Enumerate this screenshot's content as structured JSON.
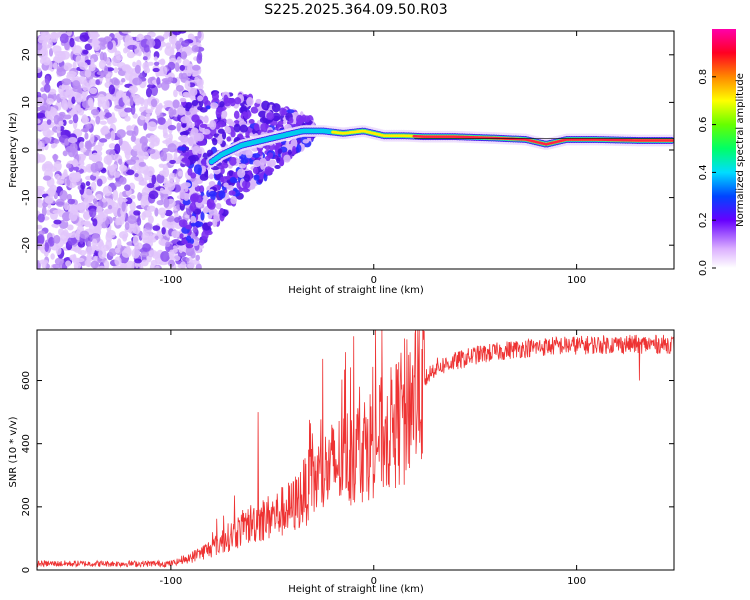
{
  "title": "S225.2025.364.09.50.R03",
  "colors": {
    "snr_line": "#ee3333",
    "background": "#ffffff",
    "axis": "#000000",
    "ridge": "#ff2244",
    "scatter": "#7722ee"
  },
  "chart_data": [
    {
      "type": "heatmap",
      "name": "spectrogram",
      "xlabel": "Height of straight line (km)",
      "ylabel": "Frequency (Hz)",
      "xlim": [
        -166,
        148
      ],
      "ylim": [
        -25,
        25
      ],
      "xticks": [
        -100,
        0,
        100
      ],
      "yticks": [
        -20,
        -10,
        0,
        10,
        20
      ],
      "colorbar": {
        "label": "Normalized spectral amplitude",
        "range": [
          0,
          1
        ],
        "ticks": [
          "0.0",
          "0.2",
          "0.4",
          "0.6",
          "0.8"
        ],
        "tick_values": [
          0.0,
          0.2,
          0.4,
          0.6,
          0.8
        ]
      },
      "ridge": [
        {
          "x": -85,
          "y": -4
        },
        {
          "x": -75,
          "y": -1
        },
        {
          "x": -65,
          "y": 1
        },
        {
          "x": -55,
          "y": 2
        },
        {
          "x": -45,
          "y": 3
        },
        {
          "x": -35,
          "y": 4
        },
        {
          "x": -25,
          "y": 4
        },
        {
          "x": -15,
          "y": 3.5
        },
        {
          "x": -5,
          "y": 4
        },
        {
          "x": 5,
          "y": 3
        },
        {
          "x": 15,
          "y": 3
        },
        {
          "x": 25,
          "y": 2.8
        },
        {
          "x": 40,
          "y": 2.8
        },
        {
          "x": 60,
          "y": 2.5
        },
        {
          "x": 75,
          "y": 2.2
        },
        {
          "x": 85,
          "y": 1.2
        },
        {
          "x": 95,
          "y": 2.2
        },
        {
          "x": 110,
          "y": 2.2
        },
        {
          "x": 130,
          "y": 2.0
        },
        {
          "x": 148,
          "y": 2.0
        }
      ]
    },
    {
      "type": "line",
      "name": "snr",
      "xlabel": "Height of straight line (km)",
      "ylabel": "SNR (10 * v/v)",
      "xlim": [
        -166,
        148
      ],
      "ylim": [
        0,
        760
      ],
      "xticks": [
        -100,
        0,
        100
      ],
      "yticks": [
        0,
        200,
        400,
        600
      ],
      "envelope": [
        {
          "x": -166,
          "y": 20
        },
        {
          "x": -100,
          "y": 20
        },
        {
          "x": -90,
          "y": 40
        },
        {
          "x": -80,
          "y": 70
        },
        {
          "x": -70,
          "y": 110
        },
        {
          "x": -60,
          "y": 150
        },
        {
          "x": -50,
          "y": 170
        },
        {
          "x": -40,
          "y": 200
        },
        {
          "x": -30,
          "y": 280
        },
        {
          "x": -20,
          "y": 330
        },
        {
          "x": -10,
          "y": 370
        },
        {
          "x": 0,
          "y": 410
        },
        {
          "x": 10,
          "y": 450
        },
        {
          "x": 20,
          "y": 560
        },
        {
          "x": 30,
          "y": 640
        },
        {
          "x": 50,
          "y": 680
        },
        {
          "x": 70,
          "y": 700
        },
        {
          "x": 90,
          "y": 710
        },
        {
          "x": 120,
          "y": 715
        },
        {
          "x": 148,
          "y": 715
        }
      ],
      "spikes": [
        {
          "x": -57,
          "y": 500
        },
        {
          "x": -10,
          "y": 740
        },
        {
          "x": -14,
          "y": 690
        },
        {
          "x": 8,
          "y": 330
        },
        {
          "x": 13,
          "y": 560
        },
        {
          "x": 15,
          "y": 270
        },
        {
          "x": 131,
          "y": 600
        }
      ]
    }
  ]
}
